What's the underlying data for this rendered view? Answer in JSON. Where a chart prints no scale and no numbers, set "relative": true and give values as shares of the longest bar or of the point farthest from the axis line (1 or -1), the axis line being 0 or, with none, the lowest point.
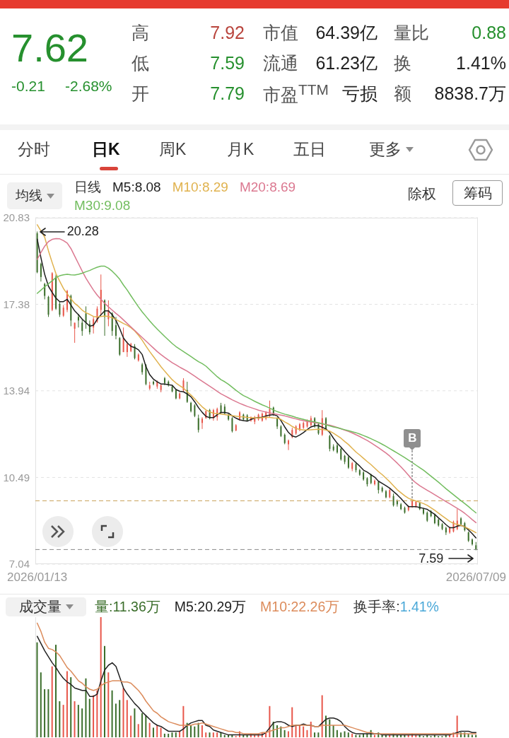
{
  "chart_data": [
    {
      "type": "other",
      "annotations": [
        "7.62",
        "-0.21",
        "-2.68%",
        "高",
        "7.92",
        "低",
        "7.59",
        "开",
        "7.79",
        "市值",
        "64.39亿",
        "流通",
        "61.23亿",
        "市盈$^{TTM}$",
        "亏损",
        "量比",
        "0.88",
        "换",
        "1.41%",
        "额",
        "8838.7万",
        "分时",
        "日K",
        "周K",
        "月K",
        "五日",
        "更多"
      ]
    },
    {
      "type": "candlestick",
      "categories": [
        "2026/01/13",
        null,
        null,
        null,
        null,
        null,
        null,
        null,
        null,
        null,
        null,
        null,
        null,
        null,
        null,
        null,
        null,
        null,
        null,
        null,
        null,
        null,
        null,
        null,
        null,
        null,
        null,
        null,
        null,
        null,
        null,
        null,
        null,
        null,
        null,
        null,
        null,
        null,
        null,
        null,
        null,
        null,
        null,
        null,
        null,
        null,
        null,
        null,
        null,
        null,
        null,
        null,
        null,
        null,
        null,
        null,
        null,
        null,
        null,
        null,
        null,
        null,
        null,
        null,
        null,
        null,
        null,
        null,
        null,
        null,
        null,
        null,
        null,
        null,
        null,
        null,
        null,
        null,
        null,
        null,
        null,
        null,
        null,
        null,
        null,
        null,
        null,
        null,
        null,
        null,
        null,
        null,
        null,
        null,
        null,
        null,
        null,
        null,
        null,
        null,
        null,
        null,
        null,
        null,
        null,
        null,
        null,
        null,
        null,
        null,
        null,
        null,
        null,
        null,
        null,
        null,
        null,
        "2026/07/09"
      ],
      "ohlc": [
        [
          20.21,
          20.28,
          18.62,
          18.66
        ],
        [
          18.99,
          19.04,
          18.29,
          18.47
        ],
        [
          18.19,
          18.24,
          17.58,
          17.72
        ],
        [
          17.68,
          17.72,
          16.88,
          16.97
        ],
        [
          17.16,
          18.66,
          17.11,
          18.62
        ],
        [
          18.48,
          18.57,
          17.16,
          17.21
        ],
        [
          17.4,
          17.49,
          16.88,
          16.97
        ],
        [
          16.93,
          17.35,
          16.88,
          17.25
        ],
        [
          17.16,
          17.96,
          17.07,
          17.91
        ],
        [
          17.72,
          17.77,
          16.51,
          16.74
        ],
        [
          16.41,
          16.65,
          15.85,
          16.65
        ],
        [
          16.88,
          17.0,
          16.46,
          16.74
        ],
        [
          16.65,
          16.79,
          16.13,
          16.32
        ],
        [
          17.02,
          17.3,
          16.41,
          16.65
        ],
        [
          16.6,
          16.74,
          16.18,
          16.27
        ],
        [
          16.46,
          16.88,
          16.22,
          16.79
        ],
        [
          16.7,
          17.3,
          16.65,
          17.21
        ],
        [
          17.16,
          18.57,
          16.97,
          17.96
        ],
        [
          17.54,
          17.58,
          16.13,
          16.88
        ],
        [
          16.79,
          17.54,
          16.51,
          17.16
        ],
        [
          17.02,
          17.07,
          16.13,
          16.32
        ],
        [
          16.55,
          16.88,
          15.99,
          16.13
        ],
        [
          16.04,
          16.08,
          15.33,
          15.38
        ],
        [
          15.48,
          16.46,
          15.48,
          16.04
        ],
        [
          15.48,
          15.9,
          15.29,
          15.8
        ],
        [
          15.52,
          15.85,
          15.48,
          15.8
        ],
        [
          15.71,
          15.8,
          15.19,
          15.24
        ],
        [
          15.15,
          15.43,
          15.1,
          15.38
        ],
        [
          14.99,
          15.05,
          14.58,
          14.68
        ],
        [
          14.96,
          15.0,
          14.16,
          14.21
        ],
        [
          14.03,
          14.3,
          13.97,
          14.16
        ],
        [
          14.3,
          14.35,
          14.16,
          14.21
        ],
        [
          14.11,
          14.35,
          14.02,
          14.3
        ],
        [
          13.97,
          14.21,
          13.88,
          14.16
        ],
        [
          14.44,
          14.49,
          14.16,
          14.25
        ],
        [
          14.3,
          14.35,
          14.11,
          14.16
        ],
        [
          14.11,
          14.16,
          13.88,
          13.92
        ],
        [
          13.97,
          14.02,
          13.6,
          13.64
        ],
        [
          13.64,
          13.88,
          13.6,
          13.83
        ],
        [
          13.97,
          14.44,
          13.88,
          14.35
        ],
        [
          13.97,
          14.3,
          13.46,
          13.5
        ],
        [
          13.46,
          13.5,
          13.08,
          13.13
        ],
        [
          13.36,
          13.41,
          12.89,
          12.94
        ],
        [
          12.85,
          12.99,
          12.28,
          12.38
        ],
        [
          12.66,
          12.89,
          12.42,
          12.83
        ],
        [
          12.85,
          13.15,
          12.83,
          13.13
        ],
        [
          13.17,
          13.22,
          12.8,
          12.85
        ],
        [
          12.85,
          13.22,
          12.75,
          13.17
        ],
        [
          12.89,
          13.27,
          12.75,
          13.22
        ],
        [
          13.36,
          13.46,
          13.03,
          13.08
        ],
        [
          13.31,
          13.41,
          12.99,
          13.03
        ],
        [
          12.99,
          13.03,
          12.75,
          12.8
        ],
        [
          12.85,
          12.89,
          12.28,
          12.33
        ],
        [
          12.36,
          12.61,
          12.33,
          12.57
        ],
        [
          12.8,
          13.13,
          12.75,
          13.08
        ],
        [
          12.99,
          13.03,
          12.75,
          12.8
        ],
        [
          12.96,
          13.01,
          12.73,
          12.75
        ],
        [
          12.75,
          12.92,
          12.71,
          12.87
        ],
        [
          12.71,
          12.94,
          12.61,
          12.89
        ],
        [
          12.8,
          13.03,
          12.75,
          12.99
        ],
        [
          12.75,
          13.08,
          12.71,
          13.03
        ],
        [
          12.83,
          13.13,
          12.77,
          13.08
        ],
        [
          12.94,
          13.55,
          12.89,
          13.22
        ],
        [
          13.27,
          13.31,
          12.94,
          12.99
        ],
        [
          12.85,
          12.89,
          12.42,
          12.52
        ],
        [
          12.52,
          12.57,
          12.1,
          12.14
        ],
        [
          12.19,
          12.24,
          11.81,
          11.86
        ],
        [
          11.81,
          12.0,
          11.58,
          11.96
        ],
        [
          12.1,
          12.47,
          12.05,
          12.38
        ],
        [
          12.24,
          12.57,
          12.19,
          12.52
        ],
        [
          12.38,
          12.66,
          12.33,
          12.61
        ],
        [
          12.47,
          12.71,
          12.42,
          12.66
        ],
        [
          12.52,
          12.8,
          12.47,
          12.75
        ],
        [
          12.57,
          12.94,
          12.52,
          12.85
        ],
        [
          12.85,
          12.89,
          12.47,
          12.52
        ],
        [
          12.61,
          12.66,
          12.19,
          12.24
        ],
        [
          12.19,
          13.17,
          12.14,
          12.85
        ],
        [
          12.85,
          12.89,
          12.38,
          12.42
        ],
        [
          12.14,
          12.19,
          11.53,
          11.63
        ],
        [
          11.72,
          11.81,
          11.53,
          11.58
        ],
        [
          11.77,
          11.86,
          11.44,
          11.49
        ],
        [
          11.63,
          11.67,
          11.16,
          11.21
        ],
        [
          11.35,
          11.39,
          11.02,
          11.11
        ],
        [
          11.3,
          11.35,
          10.83,
          10.88
        ],
        [
          10.83,
          11.11,
          10.74,
          11.06
        ],
        [
          11.02,
          11.11,
          10.69,
          10.78
        ],
        [
          10.78,
          10.83,
          10.55,
          10.6
        ],
        [
          10.69,
          10.74,
          10.36,
          10.41
        ],
        [
          10.46,
          10.5,
          10.13,
          10.22
        ],
        [
          10.6,
          10.64,
          10.22,
          10.27
        ],
        [
          10.22,
          10.41,
          10.17,
          10.36
        ],
        [
          10.32,
          10.36,
          9.85,
          9.99
        ],
        [
          10.08,
          10.13,
          9.89,
          9.94
        ],
        [
          9.94,
          9.99,
          9.66,
          9.7
        ],
        [
          9.7,
          10.08,
          9.66,
          9.99
        ],
        [
          9.75,
          9.85,
          9.33,
          9.38
        ],
        [
          9.56,
          9.61,
          9.33,
          9.42
        ],
        [
          9.42,
          9.47,
          9.19,
          9.23
        ],
        [
          9.28,
          9.33,
          9.05,
          9.09
        ],
        [
          9.19,
          9.38,
          9.14,
          9.33
        ],
        [
          9.33,
          9.61,
          9.28,
          9.56
        ],
        [
          9.33,
          9.56,
          9.28,
          9.52
        ],
        [
          9.47,
          9.52,
          9.19,
          9.23
        ],
        [
          9.23,
          9.28,
          9.0,
          9.05
        ],
        [
          9.09,
          9.14,
          8.72,
          8.77
        ],
        [
          9.14,
          9.19,
          8.91,
          8.95
        ],
        [
          9.0,
          9.05,
          8.63,
          8.67
        ],
        [
          8.81,
          8.86,
          8.53,
          8.58
        ],
        [
          8.63,
          8.67,
          8.39,
          8.44
        ],
        [
          8.48,
          8.53,
          8.2,
          8.3
        ],
        [
          8.3,
          8.53,
          8.25,
          8.48
        ],
        [
          8.34,
          8.77,
          8.3,
          8.72
        ],
        [
          8.44,
          9.23,
          8.39,
          8.77
        ],
        [
          8.86,
          8.91,
          8.58,
          8.63
        ],
        [
          8.67,
          8.72,
          8.34,
          8.39
        ],
        [
          8.3,
          8.34,
          7.92,
          7.97
        ],
        [
          8.02,
          8.06,
          7.78,
          7.83
        ],
        [
          7.79,
          7.92,
          7.59,
          7.62
        ]
      ],
      "colors": [
        "#3b6e2b",
        "#3b6e2b",
        "#3b6e2b",
        "#3b6e2b",
        "#e8564a",
        "#3b6e2b",
        "#3b6e2b",
        "#e8564a",
        "#e8564a",
        "#3b6e2b",
        "#e8564a",
        "#3b6e2b",
        "#3b6e2b",
        "#3b6e2b",
        "#3b6e2b",
        "#e8564a",
        "#e8564a",
        "#e8564a",
        "#3b6e2b",
        "#e8564a",
        "#3b6e2b",
        "#3b6e2b",
        "#3b6e2b",
        "#e8564a",
        "#e8564a",
        "#e8564a",
        "#3b6e2b",
        "#e8564a",
        "#3b6e2b",
        "#3b6e2b",
        "#e8564a",
        "#3b6e2b",
        "#e8564a",
        "#e8564a",
        "#3b6e2b",
        "#3b6e2b",
        "#3b6e2b",
        "#3b6e2b",
        "#e8564a",
        "#e8564a",
        "#3b6e2b",
        "#3b6e2b",
        "#3b6e2b",
        "#3b6e2b",
        "#e8564a",
        "#e8564a",
        "#3b6e2b",
        "#e8564a",
        "#e8564a",
        "#3b6e2b",
        "#3b6e2b",
        "#3b6e2b",
        "#3b6e2b",
        "#e8564a",
        "#e8564a",
        "#3b6e2b",
        "#3b6e2b",
        "#e8564a",
        "#e8564a",
        "#e8564a",
        "#e8564a",
        "#e8564a",
        "#e8564a",
        "#3b6e2b",
        "#3b6e2b",
        "#3b6e2b",
        "#3b6e2b",
        "#e8564a",
        "#e8564a",
        "#e8564a",
        "#e8564a",
        "#e8564a",
        "#e8564a",
        "#e8564a",
        "#3b6e2b",
        "#3b6e2b",
        "#e8564a",
        "#3b6e2b",
        "#3b6e2b",
        "#3b6e2b",
        "#3b6e2b",
        "#3b6e2b",
        "#3b6e2b",
        "#3b6e2b",
        "#e8564a",
        "#3b6e2b",
        "#3b6e2b",
        "#3b6e2b",
        "#3b6e2b",
        "#3b6e2b",
        "#e8564a",
        "#3b6e2b",
        "#3b6e2b",
        "#3b6e2b",
        "#e8564a",
        "#3b6e2b",
        "#3b6e2b",
        "#3b6e2b",
        "#3b6e2b",
        "#e8564a",
        "#e8564a",
        "#e8564a",
        "#3b6e2b",
        "#3b6e2b",
        "#3b6e2b",
        "#3b6e2b",
        "#3b6e2b",
        "#3b6e2b",
        "#3b6e2b",
        "#3b6e2b",
        "#e8564a",
        "#e8564a",
        "#e8564a",
        "#3b6e2b",
        "#3b6e2b",
        "#3b6e2b",
        "#3b6e2b",
        "#3b6e2b"
      ],
      "ylim": [
        7.04,
        20.83
      ],
      "yticks": [
        7.04,
        10.49,
        13.94,
        17.38,
        20.83
      ],
      "grid": "y",
      "legend": "top left",
      "legend_title": "日线",
      "marker": "none",
      "series": [
        {
          "type": "line",
          "name": "M5:8.08",
          "color": "#1e1e1e",
          "values": [
            19.98,
            19.23,
            18.57,
            18.1,
            17.85,
            17.63,
            17.49,
            17.49,
            17.58,
            17.35,
            17.12,
            16.97,
            16.79,
            16.65,
            16.51,
            16.55,
            16.79,
            16.97,
            17.12,
            17.12,
            16.97,
            16.74,
            16.41,
            16.04,
            15.85,
            15.71,
            15.66,
            15.57,
            15.38,
            14.9,
            14.58,
            14.4,
            14.3,
            14.21,
            14.21,
            14.18,
            14.16,
            13.99,
            13.92,
            13.9,
            13.81,
            13.7,
            13.5,
            13.27,
            13.08,
            12.92,
            12.87,
            12.87,
            12.99,
            13.08,
            13.08,
            13.05,
            12.94,
            12.85,
            12.78,
            12.75,
            12.73,
            12.8,
            12.85,
            12.87,
            12.89,
            12.94,
            12.97,
            12.99,
            12.94,
            12.75,
            12.5,
            12.28,
            12.14,
            12.1,
            12.18,
            12.28,
            12.4,
            12.5,
            12.55,
            12.55,
            12.49,
            12.42,
            12.28,
            12.05,
            11.85,
            11.7,
            11.52,
            11.36,
            11.22,
            11.08,
            10.94,
            10.78,
            10.7,
            10.6,
            10.5,
            10.34,
            10.25,
            10.16,
            10.06,
            9.93,
            9.8,
            9.65,
            9.48,
            9.33,
            9.33,
            9.33,
            9.29,
            9.26,
            9.22,
            9.12,
            9.02,
            8.88,
            8.75,
            8.61,
            8.49,
            8.49,
            8.55,
            8.58,
            8.53,
            8.4,
            8.25,
            8.08
          ]
        },
        {
          "type": "line",
          "name": "M10:8.29",
          "color": "#e0b24e",
          "values": [
            20.55,
            20.3,
            20.05,
            19.51,
            19.04,
            18.6,
            18.3,
            18.01,
            17.8,
            17.6,
            17.42,
            17.3,
            17.15,
            17.05,
            16.98,
            16.9,
            16.88,
            16.9,
            16.92,
            16.9,
            16.85,
            16.78,
            16.7,
            16.62,
            16.55,
            16.45,
            16.32,
            16.15,
            15.95,
            15.72,
            15.5,
            15.3,
            15.1,
            14.9,
            14.72,
            14.55,
            14.38,
            14.25,
            14.14,
            14.05,
            13.9,
            13.77,
            13.62,
            13.45,
            13.3,
            13.18,
            13.1,
            13.05,
            13.03,
            13.01,
            12.99,
            12.97,
            12.95,
            12.93,
            12.91,
            12.9,
            12.88,
            12.87,
            12.86,
            12.86,
            12.87,
            12.89,
            12.88,
            12.86,
            12.85,
            12.8,
            12.7,
            12.62,
            12.52,
            12.44,
            12.4,
            12.38,
            12.38,
            12.39,
            12.4,
            12.41,
            12.4,
            12.38,
            12.33,
            12.25,
            12.15,
            12.05,
            11.92,
            11.8,
            11.65,
            11.5,
            11.38,
            11.25,
            11.12,
            11.0,
            10.86,
            10.72,
            10.6,
            10.46,
            10.32,
            10.16,
            10.0,
            9.88,
            9.76,
            9.66,
            9.6,
            9.55,
            9.5,
            9.45,
            9.38,
            9.28,
            9.18,
            9.07,
            8.96,
            8.85,
            8.74,
            8.66,
            8.62,
            8.58,
            8.52,
            8.45,
            8.37,
            8.29
          ]
        },
        {
          "type": "line",
          "name": "M20:8.69",
          "color": "#db7890",
          "values": [
            19.17,
            19.45,
            19.7,
            19.88,
            19.97,
            20.0,
            19.99,
            19.92,
            19.82,
            19.6,
            19.3,
            19.0,
            18.7,
            18.42,
            18.18,
            17.95,
            17.75,
            17.58,
            17.42,
            17.28,
            17.15,
            17.02,
            16.9,
            16.76,
            16.62,
            16.48,
            16.34,
            16.2,
            16.06,
            15.92,
            15.78,
            15.64,
            15.5,
            15.38,
            15.27,
            15.16,
            15.06,
            14.97,
            14.88,
            14.8,
            14.72,
            14.62,
            14.52,
            14.42,
            14.32,
            14.22,
            14.12,
            14.02,
            13.92,
            13.82,
            13.74,
            13.66,
            13.58,
            13.51,
            13.44,
            13.38,
            13.32,
            13.27,
            13.22,
            13.17,
            13.13,
            13.09,
            13.06,
            13.03,
            13.0,
            12.97,
            12.94,
            12.9,
            12.86,
            12.82,
            12.78,
            12.75,
            12.72,
            12.7,
            12.67,
            12.65,
            12.63,
            12.6,
            12.57,
            12.53,
            12.48,
            12.43,
            12.37,
            12.32,
            12.26,
            12.19,
            12.12,
            12.04,
            11.96,
            11.87,
            11.77,
            11.67,
            11.57,
            11.46,
            11.34,
            11.2,
            11.06,
            10.91,
            10.75,
            10.58,
            10.4,
            10.27,
            10.16,
            10.07,
            9.98,
            9.89,
            9.8,
            9.71,
            9.62,
            9.53,
            9.44,
            9.35,
            9.26,
            9.17,
            9.06,
            8.94,
            8.81,
            8.69
          ]
        },
        {
          "type": "line",
          "name": "M30:9.08",
          "color": "#72bd5f",
          "values": [
            17.82,
            17.95,
            18.08,
            18.2,
            18.32,
            18.45,
            18.52,
            18.56,
            18.58,
            18.56,
            18.55,
            18.58,
            18.62,
            18.68,
            18.73,
            18.8,
            18.86,
            18.9,
            18.9,
            18.82,
            18.7,
            18.55,
            18.38,
            18.15,
            17.95,
            17.72,
            17.5,
            17.28,
            17.08,
            16.9,
            16.72,
            16.55,
            16.4,
            16.25,
            16.1,
            15.96,
            15.82,
            15.7,
            15.6,
            15.5,
            15.4,
            15.3,
            15.2,
            15.1,
            15.02,
            14.92,
            14.78,
            14.64,
            14.5,
            14.38,
            14.3,
            14.2,
            14.08,
            13.96,
            13.85,
            13.75,
            13.68,
            13.6,
            13.52,
            13.45,
            13.38,
            13.32,
            13.25,
            13.18,
            13.11,
            13.06,
            13.01,
            12.97,
            12.93,
            12.88,
            12.84,
            12.8,
            12.76,
            12.73,
            12.7,
            12.67,
            12.63,
            12.58,
            12.54,
            12.5,
            12.47,
            12.43,
            12.39,
            12.35,
            12.31,
            12.27,
            12.22,
            12.16,
            12.1,
            12.03,
            11.96,
            11.89,
            11.81,
            11.73,
            11.64,
            11.55,
            11.46,
            11.37,
            11.28,
            11.18,
            11.08,
            10.98,
            10.88,
            10.78,
            10.66,
            10.54,
            10.42,
            10.3,
            10.17,
            10.04,
            9.92,
            9.8,
            9.68,
            9.56,
            9.45,
            9.33,
            9.2,
            9.08
          ]
        }
      ],
      "ref_lines": [
        {
          "axis": "y",
          "value": 9.56,
          "color": "#c9a35a",
          "line_style": "dashed"
        },
        {
          "axis": "y",
          "value": 7.62,
          "color": "#8a8a8a",
          "line_style": "dashed"
        }
      ],
      "annotations": [
        {
          "text": "20.28",
          "x": "2026/01/13",
          "y": 20.28
        },
        {
          "text": "7.59",
          "x": "2026/07/09",
          "y": 7.59
        },
        "均线",
        "除权",
        "筹码",
        {
          "text": "B",
          "y": 9.61
        }
      ]
    },
    {
      "type": "bar",
      "title": "成交量",
      "relative": true,
      "tick_labels": false,
      "legend": "top left",
      "marker": "none",
      "categories": [
        null,
        null,
        null,
        null,
        null,
        null,
        null,
        null,
        null,
        null,
        null,
        null,
        null,
        null,
        null,
        null,
        null,
        null,
        null,
        null,
        null,
        null,
        null,
        null,
        null,
        null,
        null,
        null,
        null,
        null,
        null,
        null,
        null,
        null,
        null,
        null,
        null,
        null,
        null,
        null,
        null,
        null,
        null,
        null,
        null,
        null,
        null,
        null,
        null,
        null,
        null,
        null,
        null,
        null,
        null,
        null,
        null,
        null,
        null,
        null,
        null,
        null,
        null,
        null,
        null,
        null,
        null,
        null,
        null,
        null,
        null,
        null,
        null,
        null,
        null,
        null,
        null,
        null,
        null,
        null,
        null,
        null,
        null,
        null,
        null,
        null,
        null,
        null,
        null,
        null,
        null,
        null,
        null,
        null,
        null,
        null,
        null,
        null,
        null,
        null,
        null,
        null,
        null,
        null,
        null,
        null,
        null,
        null,
        null,
        null,
        null,
        null,
        null,
        null,
        null,
        null,
        null,
        null
      ],
      "series": [
        {
          "name": "量:11.36万",
          "values": [
            0.79,
            0.54,
            0.4,
            0.4,
            0.59,
            0.77,
            0.3,
            0.27,
            0.55,
            0.5,
            0.3,
            0.27,
            0.24,
            0.49,
            0.32,
            0.35,
            0.39,
            1,
            0.76,
            0.54,
            0.39,
            0.28,
            0.31,
            0.41,
            0.31,
            0.18,
            0.24,
            0.11,
            0.2,
            0.18,
            0.12,
            0.08,
            0.1,
            0.08,
            0.03,
            0.03,
            0.04,
            0.04,
            0.05,
            0.26,
            0.12,
            0.1,
            0.09,
            0.12,
            0.1,
            0.04,
            0.04,
            0.04,
            0.04,
            0.04,
            0.02,
            0.02,
            0.02,
            0.01,
            0.05,
            0.02,
            0.02,
            0.03,
            0.02,
            0.03,
            0.04,
            0.04,
            0.26,
            0.13,
            0.1,
            0.09,
            0.06,
            0.05,
            0.25,
            0.1,
            0.1,
            0.09,
            0.06,
            0.13,
            0.04,
            0.04,
            0.35,
            0.18,
            0.15,
            0.1,
            0.06,
            0.04,
            0.05,
            0.04,
            0.03,
            0.02,
            0.02,
            0.03,
            0.03,
            0.06,
            0.02,
            0.04,
            0.02,
            0.02,
            0.02,
            0.03,
            0.02,
            0.02,
            0.02,
            0.02,
            0.03,
            0.02,
            0.02,
            0.01,
            0.02,
            0.01,
            0.02,
            0.01,
            0.01,
            0.02,
            0.02,
            0.04,
            0.18,
            0.04,
            0.04,
            0.03,
            0.02,
            0.02
          ],
          "colors": [
            "#3b6e2b",
            "#3b6e2b",
            "#3b6e2b",
            "#3b6e2b",
            "#e8564a",
            "#3b6e2b",
            "#3b6e2b",
            "#e8564a",
            "#e8564a",
            "#3b6e2b",
            "#e8564a",
            "#3b6e2b",
            "#3b6e2b",
            "#3b6e2b",
            "#3b6e2b",
            "#e8564a",
            "#e8564a",
            "#e8564a",
            "#3b6e2b",
            "#e8564a",
            "#3b6e2b",
            "#3b6e2b",
            "#3b6e2b",
            "#e8564a",
            "#e8564a",
            "#e8564a",
            "#3b6e2b",
            "#e8564a",
            "#3b6e2b",
            "#3b6e2b",
            "#e8564a",
            "#3b6e2b",
            "#e8564a",
            "#e8564a",
            "#3b6e2b",
            "#3b6e2b",
            "#3b6e2b",
            "#3b6e2b",
            "#e8564a",
            "#e8564a",
            "#3b6e2b",
            "#3b6e2b",
            "#3b6e2b",
            "#3b6e2b",
            "#e8564a",
            "#e8564a",
            "#3b6e2b",
            "#e8564a",
            "#e8564a",
            "#3b6e2b",
            "#3b6e2b",
            "#3b6e2b",
            "#3b6e2b",
            "#e8564a",
            "#e8564a",
            "#3b6e2b",
            "#3b6e2b",
            "#e8564a",
            "#e8564a",
            "#e8564a",
            "#e8564a",
            "#e8564a",
            "#e8564a",
            "#3b6e2b",
            "#3b6e2b",
            "#3b6e2b",
            "#3b6e2b",
            "#e8564a",
            "#e8564a",
            "#e8564a",
            "#e8564a",
            "#e8564a",
            "#e8564a",
            "#e8564a",
            "#3b6e2b",
            "#3b6e2b",
            "#e8564a",
            "#3b6e2b",
            "#3b6e2b",
            "#3b6e2b",
            "#3b6e2b",
            "#3b6e2b",
            "#3b6e2b",
            "#3b6e2b",
            "#e8564a",
            "#3b6e2b",
            "#3b6e2b",
            "#3b6e2b",
            "#3b6e2b",
            "#3b6e2b",
            "#e8564a",
            "#3b6e2b",
            "#3b6e2b",
            "#3b6e2b",
            "#e8564a",
            "#3b6e2b",
            "#3b6e2b",
            "#3b6e2b",
            "#3b6e2b",
            "#e8564a",
            "#e8564a",
            "#e8564a",
            "#3b6e2b",
            "#3b6e2b",
            "#3b6e2b",
            "#3b6e2b",
            "#3b6e2b",
            "#3b6e2b",
            "#3b6e2b",
            "#3b6e2b",
            "#e8564a",
            "#e8564a",
            "#e8564a",
            "#3b6e2b",
            "#3b6e2b",
            "#3b6e2b",
            "#3b6e2b",
            "#3b6e2b"
          ]
        },
        {
          "type": "line",
          "name": "M5:20.29万",
          "color": "#222222",
          "values": [
            0.84,
            0.78,
            0.72,
            0.67,
            0.62,
            0.58,
            0.53,
            0.49,
            0.46,
            0.44,
            0.41,
            0.4,
            0.39,
            0.39,
            0.34,
            0.34,
            0.36,
            0.47,
            0.56,
            0.6,
            0.62,
            0.59,
            0.5,
            0.41,
            0.36,
            0.32,
            0.28,
            0.25,
            0.21,
            0.18,
            0.15,
            0.12,
            0.1,
            0.09,
            0.07,
            0.05,
            0.05,
            0.05,
            0.05,
            0.07,
            0.1,
            0.12,
            0.13,
            0.14,
            0.14,
            0.1,
            0.09,
            0.06,
            0.05,
            0.04,
            0.03,
            0.02,
            0.02,
            0.02,
            0.02,
            0.02,
            0.02,
            0.02,
            0.02,
            0.02,
            0.02,
            0.04,
            0.08,
            0.12,
            0.13,
            0.13,
            0.12,
            0.1,
            0.09,
            0.1,
            0.1,
            0.11,
            0.1,
            0.1,
            0.09,
            0.09,
            0.12,
            0.15,
            0.16,
            0.16,
            0.15,
            0.13,
            0.09,
            0.06,
            0.04,
            0.03,
            0.03,
            0.03,
            0.03,
            0.03,
            0.03,
            0.03,
            0.02,
            0.02,
            0.02,
            0.02,
            0.02,
            0.02,
            0.02,
            0.02,
            0.02,
            0.02,
            0.02,
            0.02,
            0.02,
            0.02,
            0.02,
            0.02,
            0.02,
            0.02,
            0.02,
            0.03,
            0.04,
            0.05,
            0.05,
            0.05,
            0.04,
            0.04
          ]
        },
        {
          "type": "line",
          "name": "M10:22.26万",
          "color": "#dc8c5c",
          "values": [
            0.95,
            0.88,
            0.79,
            0.74,
            0.73,
            0.71,
            0.68,
            0.63,
            0.58,
            0.55,
            0.51,
            0.47,
            0.45,
            0.42,
            0.4,
            0.39,
            0.4,
            0.43,
            0.45,
            0.46,
            0.47,
            0.47,
            0.47,
            0.46,
            0.46,
            0.45,
            0.42,
            0.39,
            0.35,
            0.3,
            0.26,
            0.22,
            0.2,
            0.17,
            0.15,
            0.13,
            0.12,
            0.11,
            0.1,
            0.1,
            0.1,
            0.1,
            0.11,
            0.11,
            0.12,
            0.11,
            0.1,
            0.09,
            0.08,
            0.07,
            0.06,
            0.05,
            0.05,
            0.04,
            0.04,
            0.03,
            0.03,
            0.03,
            0.03,
            0.03,
            0.04,
            0.04,
            0.05,
            0.06,
            0.07,
            0.08,
            0.08,
            0.09,
            0.1,
            0.1,
            0.1,
            0.1,
            0.1,
            0.1,
            0.09,
            0.09,
            0.1,
            0.1,
            0.1,
            0.1,
            0.1,
            0.1,
            0.1,
            0.09,
            0.08,
            0.07,
            0.06,
            0.05,
            0.04,
            0.04,
            0.03,
            0.03,
            0.03,
            0.03,
            0.03,
            0.03,
            0.03,
            0.03,
            0.03,
            0.03,
            0.03,
            0.03,
            0.03,
            0.03,
            0.03,
            0.03,
            0.03,
            0.03,
            0.03,
            0.03,
            0.03,
            0.03,
            0.03,
            0.03,
            0.03,
            0.03,
            0.03,
            0.03
          ]
        }
      ],
      "annotations": [
        "换手率:1.41%"
      ]
    }
  ]
}
